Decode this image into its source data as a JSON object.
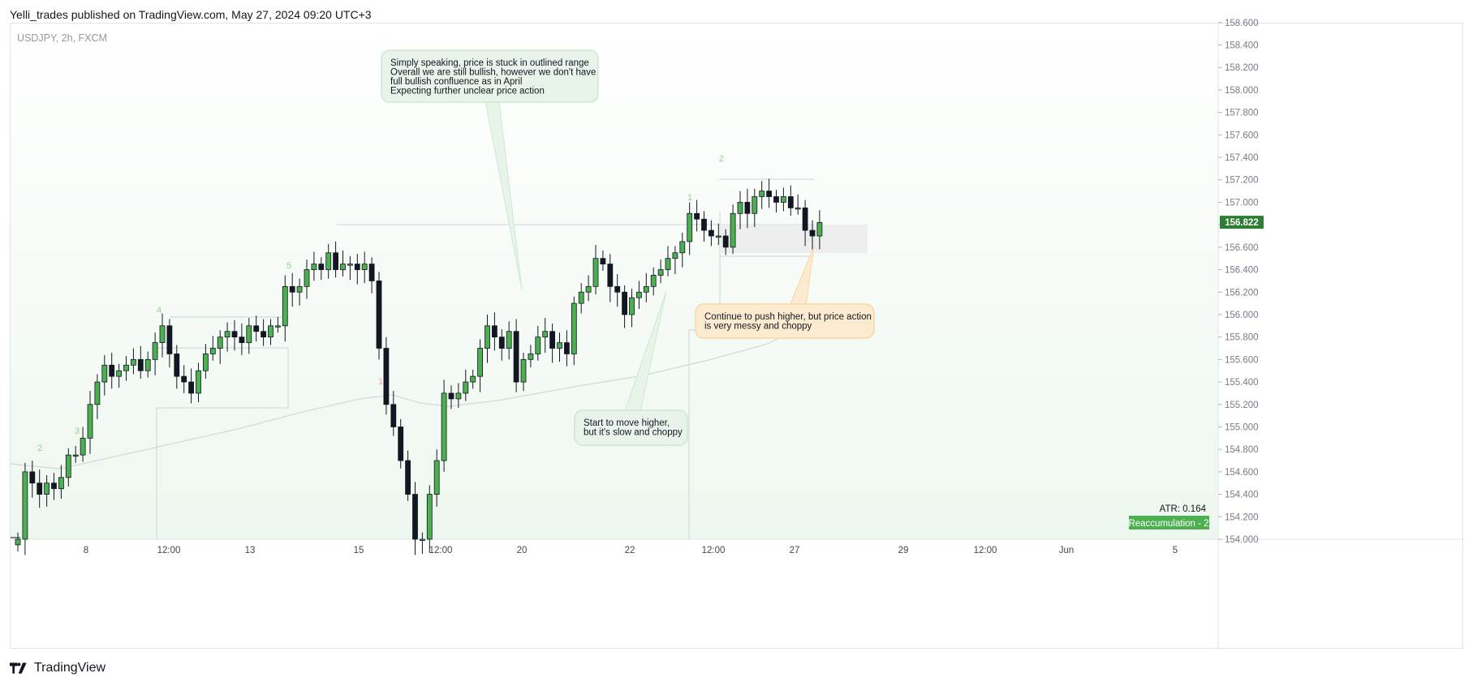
{
  "header": {
    "published": "Yelli_trades published on TradingView.com, May 27, 2024 09:20 UTC+3"
  },
  "footer": {
    "brand": "TradingView"
  },
  "chart_data": {
    "type": "candlestick",
    "title": "USDJPY, 2h, FXCM",
    "y_ticks": [
      "154.000",
      "154.200",
      "154.400",
      "154.600",
      "154.800",
      "155.000",
      "155.200",
      "155.400",
      "155.600",
      "155.800",
      "156.000",
      "156.200",
      "156.400",
      "156.600",
      "156.800",
      "157.000",
      "157.200",
      "157.400",
      "157.600",
      "157.800",
      "158.000",
      "158.200",
      "158.400",
      "158.600"
    ],
    "x_ticks": [
      "8",
      "12:00",
      "13",
      "15",
      "12:00",
      "20",
      "22",
      "12:00",
      "27",
      "29",
      "12:00",
      "Jun",
      "5"
    ],
    "ylim": [
      154.0,
      158.6
    ],
    "last_price": "156.822",
    "atr": "ATR: 0.164",
    "badge": "Reaccumulation - 2",
    "wave_labels": [
      "2",
      "3",
      "4",
      "5",
      "1",
      "1",
      "2"
    ],
    "annotations": [
      "Simply speaking, price is stuck in outlined range\nOverall we are still bullish, however we don't have\nfull bullish confluence as in April\nExpecting further unclear price action",
      "Continue to push higher, but price action\nis very messy and choppy",
      "Start to move higher,\nbut it's slow and choppy"
    ],
    "closes": [
      154.0,
      154.6,
      154.5,
      154.4,
      154.5,
      154.45,
      154.55,
      154.75,
      154.75,
      154.9,
      155.2,
      155.4,
      155.55,
      155.45,
      155.5,
      155.55,
      155.6,
      155.5,
      155.6,
      155.75,
      155.9,
      155.65,
      155.45,
      155.4,
      155.3,
      155.5,
      155.65,
      155.7,
      155.8,
      155.85,
      155.8,
      155.75,
      155.9,
      155.85,
      155.8,
      155.9,
      155.9,
      156.25,
      156.2,
      156.25,
      156.4,
      156.45,
      156.4,
      156.55,
      156.4,
      156.45,
      156.45,
      156.4,
      156.45,
      156.3,
      155.7,
      155.2,
      155.0,
      154.7,
      154.4,
      154.0,
      154.0,
      154.4,
      154.7,
      155.3,
      155.25,
      155.3,
      155.4,
      155.45,
      155.7,
      155.9,
      155.8,
      155.7,
      155.85,
      155.4,
      155.6,
      155.65,
      155.8,
      155.85,
      155.7,
      155.75,
      155.65,
      156.1,
      156.2,
      156.25,
      156.5,
      156.45,
      156.25,
      156.2,
      156.0,
      156.15,
      156.2,
      156.25,
      156.35,
      156.4,
      156.5,
      156.55,
      156.65,
      156.9,
      156.85,
      156.75,
      156.7,
      156.7,
      156.6,
      156.9,
      157.0,
      156.9,
      157.05,
      157.1,
      157.05,
      157.0,
      157.05,
      156.95,
      156.95,
      156.75,
      156.7,
      156.82
    ],
    "ma": [
      [
        154.6,
        0
      ],
      [
        154.72,
        20
      ],
      [
        154.83,
        40
      ],
      [
        154.98,
        60
      ],
      [
        155.1,
        75
      ],
      [
        155.2,
        85
      ],
      [
        155.16,
        100
      ],
      [
        155.2,
        115
      ],
      [
        155.28,
        130
      ],
      [
        155.4,
        145
      ],
      [
        155.53,
        160
      ],
      [
        155.65,
        175
      ],
      [
        155.78,
        190
      ],
      [
        155.86,
        200
      ]
    ]
  }
}
